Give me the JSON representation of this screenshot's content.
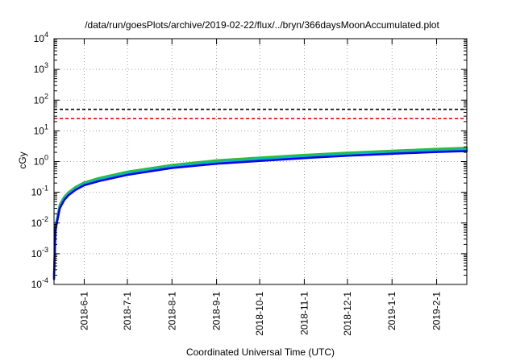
{
  "chart_data": {
    "type": "line",
    "title": "/data/run/goesPlots/archive/2019-02-22/flux/../bryn/366daysMoonAccumulated.plot",
    "xlabel": "Coordinated Universal Time (UTC)",
    "ylabel": "cGy",
    "y_scale": "log",
    "ylim": [
      0.0001,
      10000
    ],
    "xlim": [
      "2018-05-11",
      "2019-02-22"
    ],
    "grid": true,
    "legend": "none",
    "y_ticks": [
      {
        "value": 0.0001,
        "base": "10",
        "exp": "-4"
      },
      {
        "value": 0.001,
        "base": "10",
        "exp": "-3"
      },
      {
        "value": 0.01,
        "base": "10",
        "exp": "-2"
      },
      {
        "value": 0.1,
        "base": "10",
        "exp": "-1"
      },
      {
        "value": 1,
        "base": "10",
        "exp": "0"
      },
      {
        "value": 10,
        "base": "10",
        "exp": "1"
      },
      {
        "value": 100,
        "base": "10",
        "exp": "2"
      },
      {
        "value": 1000,
        "base": "10",
        "exp": "3"
      },
      {
        "value": 10000,
        "base": "10",
        "exp": "4"
      }
    ],
    "x_ticks": [
      "2018-6-1",
      "2018-7-1",
      "2018-8-1",
      "2018-9-1",
      "2018-10-1",
      "2018-11-1",
      "2018-12-1",
      "2019-1-1",
      "2019-2-1"
    ],
    "thresholds": [
      {
        "value": 50,
        "color": "#000000"
      },
      {
        "value": 25,
        "color": "#ff0000"
      }
    ],
    "series": [
      {
        "color": "#33bb33",
        "x": [
          "2018-05-11",
          "2018-05-12",
          "2018-05-15",
          "2018-05-18",
          "2018-05-21",
          "2018-05-26",
          "2018-06-01",
          "2018-06-11",
          "2018-07-01",
          "2018-08-01",
          "2018-09-01",
          "2018-10-01",
          "2018-11-01",
          "2018-12-01",
          "2019-01-01",
          "2019-02-01",
          "2019-02-22"
        ],
        "y": [
          0.0002,
          0.008,
          0.04,
          0.07,
          0.1,
          0.15,
          0.21,
          0.29,
          0.47,
          0.78,
          1.1,
          1.35,
          1.65,
          1.95,
          2.25,
          2.6,
          2.8
        ]
      },
      {
        "color": "#00bbbb",
        "x": [
          "2018-05-11",
          "2018-05-12",
          "2018-05-15",
          "2018-05-18",
          "2018-05-21",
          "2018-05-26",
          "2018-06-01",
          "2018-06-11",
          "2018-07-01",
          "2018-08-01",
          "2018-09-01",
          "2018-10-01",
          "2018-11-01",
          "2018-12-01",
          "2019-01-01",
          "2019-02-01",
          "2019-02-22"
        ],
        "y": [
          0.00018,
          0.007,
          0.035,
          0.062,
          0.09,
          0.135,
          0.19,
          0.26,
          0.42,
          0.7,
          0.97,
          1.2,
          1.48,
          1.75,
          2.02,
          2.32,
          2.5
        ]
      },
      {
        "color": "#0000ee",
        "x": [
          "2018-05-11",
          "2018-05-12",
          "2018-05-15",
          "2018-05-18",
          "2018-05-21",
          "2018-05-26",
          "2018-06-01",
          "2018-06-11",
          "2018-07-01",
          "2018-08-01",
          "2018-09-01",
          "2018-10-01",
          "2018-11-01",
          "2018-12-01",
          "2019-01-01",
          "2019-02-01",
          "2019-02-22"
        ],
        "y": [
          0.00015,
          0.006,
          0.03,
          0.055,
          0.08,
          0.12,
          0.17,
          0.23,
          0.37,
          0.62,
          0.85,
          1.05,
          1.3,
          1.55,
          1.8,
          2.05,
          2.2
        ]
      }
    ]
  }
}
